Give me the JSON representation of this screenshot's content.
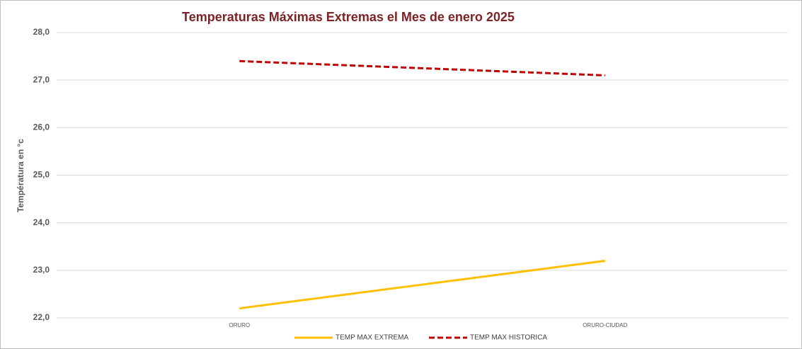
{
  "chart_data": {
    "type": "line",
    "title": "Temperaturas Máximas Extremas el Mes de enero 2025",
    "y_label": "Températura en °c",
    "categories": [
      "ORURO",
      "ORURO-CIUDAD"
    ],
    "series": [
      {
        "name": "TEMP MAX EXTREMA",
        "color": "#ffc000",
        "dashed": false,
        "values": [
          22.2,
          23.2
        ]
      },
      {
        "name": "TEMP MAX HISTORICA",
        "color": "#c00000",
        "dashed": true,
        "values": [
          27.4,
          27.1
        ]
      }
    ],
    "ylim": [
      22,
      28
    ],
    "yticks": [
      {
        "value": 22,
        "label": "22,0"
      },
      {
        "value": 23,
        "label": "23,0"
      },
      {
        "value": 24,
        "label": "24,0"
      },
      {
        "value": 25,
        "label": "25,0"
      },
      {
        "value": 26,
        "label": "26,0"
      },
      {
        "value": 27,
        "label": "27,0"
      },
      {
        "value": 28,
        "label": "28,0"
      }
    ],
    "grid": true,
    "legend": "bottom"
  }
}
